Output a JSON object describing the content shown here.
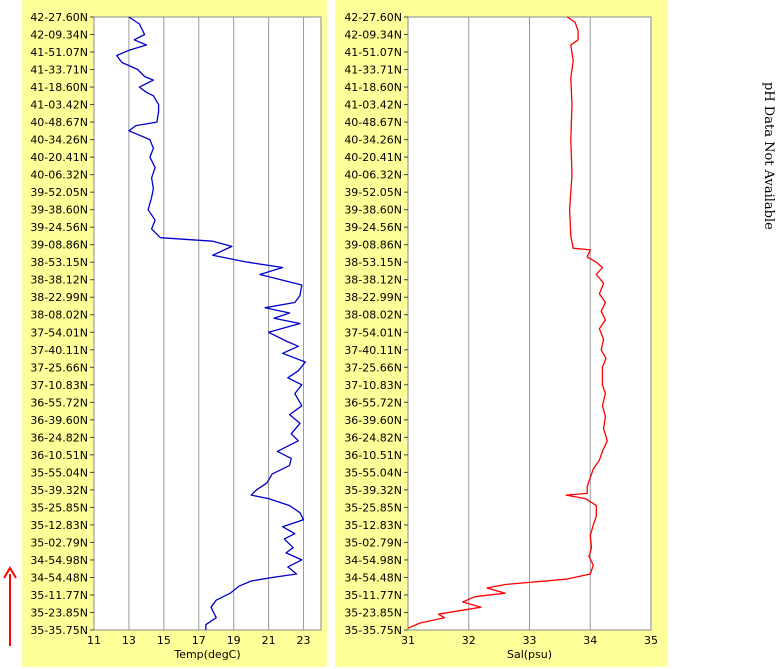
{
  "note_text": "pH Data Not Available",
  "direction_arrow_color": "#ff0000",
  "panel_background": "#ffff99",
  "plot_background": "#ffffff",
  "grid_color": "#999999",
  "chart_data": [
    {
      "type": "line",
      "xlabel": "Temp(degC)",
      "xlim": [
        11,
        24
      ],
      "x_ticks": [
        11,
        13,
        15,
        17,
        19,
        21,
        23
      ],
      "grid": "vertical",
      "y_tick_labels": [
        "42-27.60N",
        "42-09.34N",
        "41-51.07N",
        "41-33.71N",
        "41-18.60N",
        "41-03.42N",
        "40-48.67N",
        "40-34.26N",
        "40-20.41N",
        "40-06.32N",
        "39-52.05N",
        "39-38.60N",
        "39-24.56N",
        "39-08.86N",
        "38-53.15N",
        "38-38.12N",
        "38-22.99N",
        "38-08.02N",
        "37-54.01N",
        "37-40.11N",
        "37-25.66N",
        "37-10.83N",
        "36-55.72N",
        "36-39.60N",
        "36-24.82N",
        "36-10.51N",
        "35-55.04N",
        "35-39.32N",
        "35-25.85N",
        "35-12.83N",
        "35-02.79N",
        "34-54.98N",
        "34-54.48N",
        "35-11.77N",
        "35-23.85N",
        "35-35.75N"
      ],
      "series": [
        {
          "color": "#0000cc",
          "values": [
            [
              13.0,
              0
            ],
            [
              13.6,
              0.4
            ],
            [
              13.9,
              1.0
            ],
            [
              13.3,
              1.3
            ],
            [
              14.0,
              1.6
            ],
            [
              13.0,
              1.9
            ],
            [
              12.3,
              2.2
            ],
            [
              12.6,
              2.6
            ],
            [
              13.5,
              3.0
            ],
            [
              13.9,
              3.4
            ],
            [
              14.4,
              3.6
            ],
            [
              13.6,
              4.0
            ],
            [
              14.0,
              4.3
            ],
            [
              14.4,
              4.5
            ],
            [
              14.7,
              5.0
            ],
            [
              14.7,
              5.4
            ],
            [
              14.6,
              6.0
            ],
            [
              13.4,
              6.2
            ],
            [
              13.0,
              6.5
            ],
            [
              14.2,
              7.0
            ],
            [
              14.4,
              7.5
            ],
            [
              14.2,
              8.0
            ],
            [
              14.5,
              8.6
            ],
            [
              14.3,
              9.2
            ],
            [
              14.4,
              9.8
            ],
            [
              14.3,
              10.3
            ],
            [
              14.1,
              11.0
            ],
            [
              14.5,
              11.6
            ],
            [
              14.3,
              12.1
            ],
            [
              14.8,
              12.6
            ],
            [
              17.8,
              12.8
            ],
            [
              18.9,
              13.1
            ],
            [
              17.8,
              13.6
            ],
            [
              19.8,
              14.0
            ],
            [
              21.8,
              14.3
            ],
            [
              20.5,
              14.7
            ],
            [
              21.7,
              15.0
            ],
            [
              22.9,
              15.3
            ],
            [
              22.8,
              15.9
            ],
            [
              22.5,
              16.3
            ],
            [
              20.8,
              16.6
            ],
            [
              22.2,
              16.9
            ],
            [
              21.3,
              17.2
            ],
            [
              22.8,
              17.5
            ],
            [
              21.0,
              18.0
            ],
            [
              22.0,
              18.5
            ],
            [
              22.7,
              18.8
            ],
            [
              21.8,
              19.2
            ],
            [
              23.1,
              19.7
            ],
            [
              22.7,
              20.2
            ],
            [
              22.1,
              20.6
            ],
            [
              22.9,
              21.0
            ],
            [
              22.5,
              21.5
            ],
            [
              22.9,
              22.2
            ],
            [
              22.2,
              22.7
            ],
            [
              22.8,
              23.2
            ],
            [
              22.3,
              23.8
            ],
            [
              22.7,
              24.2
            ],
            [
              21.5,
              24.8
            ],
            [
              22.3,
              25.2
            ],
            [
              22.2,
              25.6
            ],
            [
              21.2,
              26.1
            ],
            [
              20.9,
              26.6
            ],
            [
              20.3,
              27.0
            ],
            [
              20.0,
              27.3
            ],
            [
              21.0,
              27.5
            ],
            [
              22.2,
              27.9
            ],
            [
              22.8,
              28.3
            ],
            [
              23.0,
              28.7
            ],
            [
              21.8,
              29.1
            ],
            [
              22.5,
              29.5
            ],
            [
              21.9,
              29.8
            ],
            [
              22.4,
              30.3
            ],
            [
              22.0,
              30.6
            ],
            [
              22.9,
              31.0
            ],
            [
              22.1,
              31.4
            ],
            [
              22.6,
              31.8
            ],
            [
              21.2,
              32.0
            ],
            [
              20.0,
              32.2
            ],
            [
              19.3,
              32.5
            ],
            [
              18.8,
              32.9
            ],
            [
              18.0,
              33.3
            ],
            [
              17.7,
              33.7
            ],
            [
              18.0,
              34.3
            ],
            [
              17.4,
              34.7
            ],
            [
              17.4,
              35.0
            ]
          ]
        }
      ]
    },
    {
      "type": "line",
      "xlabel": "Sal(psu)",
      "xlim": [
        31,
        35
      ],
      "x_ticks": [
        31,
        32,
        33,
        34,
        35
      ],
      "grid": "vertical",
      "y_tick_labels": [
        "42-27.60N",
        "42-09.34N",
        "41-51.07N",
        "41-33.71N",
        "41-18.60N",
        "41-03.42N",
        "40-48.67N",
        "40-34.26N",
        "40-20.41N",
        "40-06.32N",
        "39-52.05N",
        "39-38.60N",
        "39-24.56N",
        "39-08.86N",
        "38-53.15N",
        "38-38.12N",
        "38-22.99N",
        "38-08.02N",
        "37-54.01N",
        "37-40.11N",
        "37-25.66N",
        "37-10.83N",
        "36-55.72N",
        "36-39.60N",
        "36-24.82N",
        "36-10.51N",
        "35-55.04N",
        "35-39.32N",
        "35-25.85N",
        "35-12.83N",
        "35-02.79N",
        "34-54.98N",
        "34-54.48N",
        "35-11.77N",
        "35-23.85N",
        "35-35.75N"
      ],
      "series": [
        {
          "color": "#ff0000",
          "values": [
            [
              33.62,
              0
            ],
            [
              33.75,
              0.3
            ],
            [
              33.8,
              0.8
            ],
            [
              33.8,
              1.3
            ],
            [
              33.68,
              1.6
            ],
            [
              33.72,
              2.5
            ],
            [
              33.68,
              3.5
            ],
            [
              33.7,
              5.0
            ],
            [
              33.68,
              7.0
            ],
            [
              33.7,
              9.0
            ],
            [
              33.66,
              11.0
            ],
            [
              33.68,
              12.5
            ],
            [
              33.72,
              13.2
            ],
            [
              34.0,
              13.3
            ],
            [
              33.95,
              13.7
            ],
            [
              34.1,
              14.0
            ],
            [
              34.2,
              14.3
            ],
            [
              34.1,
              14.7
            ],
            [
              34.22,
              15.2
            ],
            [
              34.15,
              15.8
            ],
            [
              34.25,
              16.3
            ],
            [
              34.18,
              16.8
            ],
            [
              34.25,
              17.3
            ],
            [
              34.15,
              17.8
            ],
            [
              34.22,
              18.4
            ],
            [
              34.18,
              19.0
            ],
            [
              34.26,
              19.5
            ],
            [
              34.2,
              20.0
            ],
            [
              34.2,
              21.0
            ],
            [
              34.25,
              21.5
            ],
            [
              34.2,
              22.2
            ],
            [
              34.25,
              22.8
            ],
            [
              34.22,
              23.5
            ],
            [
              34.28,
              24.2
            ],
            [
              34.2,
              24.8
            ],
            [
              34.15,
              25.3
            ],
            [
              34.05,
              25.8
            ],
            [
              34.0,
              26.3
            ],
            [
              33.95,
              26.8
            ],
            [
              33.95,
              27.2
            ],
            [
              33.6,
              27.3
            ],
            [
              33.92,
              27.5
            ],
            [
              34.1,
              27.9
            ],
            [
              34.1,
              28.5
            ],
            [
              34.05,
              29.0
            ],
            [
              34.0,
              29.6
            ],
            [
              34.02,
              30.3
            ],
            [
              33.98,
              30.8
            ],
            [
              34.05,
              31.3
            ],
            [
              34.0,
              31.8
            ],
            [
              33.6,
              32.1
            ],
            [
              32.6,
              32.4
            ],
            [
              32.3,
              32.6
            ],
            [
              32.6,
              32.9
            ],
            [
              32.1,
              33.1
            ],
            [
              31.9,
              33.4
            ],
            [
              32.2,
              33.7
            ],
            [
              31.5,
              34.1
            ],
            [
              31.6,
              34.3
            ],
            [
              31.2,
              34.6
            ],
            [
              31.0,
              34.9
            ]
          ]
        }
      ]
    }
  ]
}
